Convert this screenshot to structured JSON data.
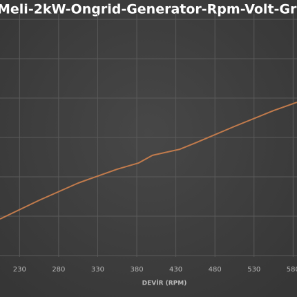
{
  "chart_data": {
    "type": "line",
    "title": "Meli-2kW-Ongrid-Generator-Rpm-Volt-Gr",
    "x_label": "DEVİR (RPM)",
    "x": [
      205,
      255,
      305,
      355,
      382,
      400,
      435,
      455,
      505,
      555,
      585
    ],
    "series": [
      {
        "color": "#c27b4c",
        "values": [
          15.6,
          23.3,
          30.4,
          36.1,
          38.6,
          41.8,
          44.3,
          46.9,
          53.7,
          60.2,
          63.6
        ]
      }
    ],
    "xlim": [
      205,
      585
    ],
    "xticks": [
      230,
      280,
      330,
      380,
      430,
      480,
      530,
      580
    ],
    "ylim": [
      0,
      100
    ],
    "grid": true
  }
}
